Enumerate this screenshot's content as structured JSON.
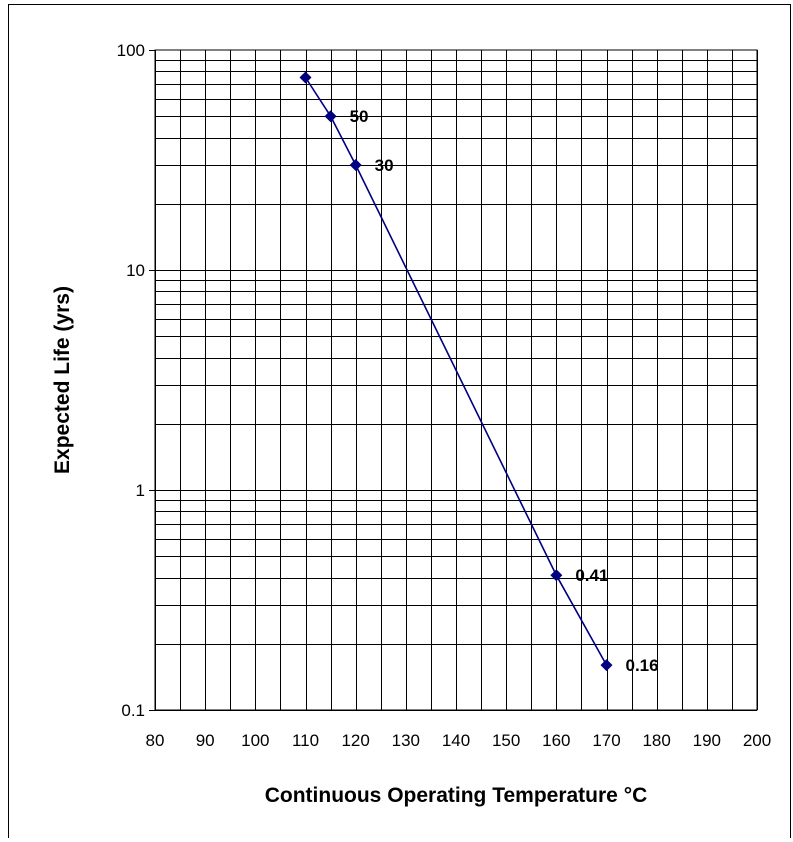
{
  "chart_data": {
    "type": "line",
    "title": "",
    "xlabel": "Continuous Operating Temperature °C",
    "ylabel": "Expected Life (yrs)",
    "xlim": [
      80,
      200
    ],
    "ylim": [
      0.1,
      100
    ],
    "yscale": "log",
    "grid": true,
    "legend": "none",
    "x_ticks": [
      "80",
      "90",
      "100",
      "110",
      "120",
      "130",
      "140",
      "150",
      "160",
      "170",
      "180",
      "190",
      "200"
    ],
    "y_ticks": [
      "0.1",
      "1",
      "10",
      "100"
    ],
    "series": [
      {
        "color": "#000080",
        "marker": "diamond",
        "points": [
          {
            "x": 110,
            "y": 75
          },
          {
            "x": 115,
            "y": 50,
            "label": "50"
          },
          {
            "x": 120,
            "y": 30,
            "label": "30"
          },
          {
            "x": 160,
            "y": 0.41,
            "label": "0.41"
          },
          {
            "x": 170,
            "y": 0.16,
            "label": "0.16"
          }
        ]
      }
    ]
  }
}
